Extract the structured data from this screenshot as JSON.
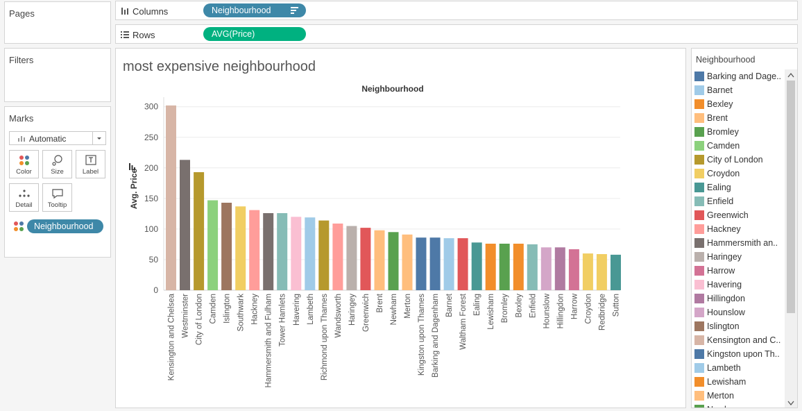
{
  "pages": {
    "title": "Pages"
  },
  "filters": {
    "title": "Filters"
  },
  "marks": {
    "title": "Marks",
    "mark_type": "Automatic",
    "cards": [
      {
        "label": "Color"
      },
      {
        "label": "Size"
      },
      {
        "label": "Label"
      },
      {
        "label": "Detail"
      },
      {
        "label": "Tooltip"
      }
    ],
    "color_pill": "Neighbourhood"
  },
  "shelves": {
    "columns_label": "Columns",
    "columns_pill": "Neighbourhood",
    "rows_label": "Rows",
    "rows_pill": "AVG(Price)"
  },
  "worksheet": {
    "title": "most expensive neighbourhood"
  },
  "legend": {
    "title": "Neighbourhood",
    "items": [
      {
        "label": "Barking and Dage..",
        "color": "#4e79a7"
      },
      {
        "label": "Barnet",
        "color": "#a0cbe8"
      },
      {
        "label": "Bexley",
        "color": "#f28e2b"
      },
      {
        "label": "Brent",
        "color": "#ffbe7d"
      },
      {
        "label": "Bromley",
        "color": "#59a14f"
      },
      {
        "label": "Camden",
        "color": "#8cd17d"
      },
      {
        "label": "City of London",
        "color": "#b6992d"
      },
      {
        "label": "Croydon",
        "color": "#f1ce63"
      },
      {
        "label": "Ealing",
        "color": "#499894"
      },
      {
        "label": "Enfield",
        "color": "#86bcb6"
      },
      {
        "label": "Greenwich",
        "color": "#e15759"
      },
      {
        "label": "Hackney",
        "color": "#ff9d9a"
      },
      {
        "label": "Hammersmith an..",
        "color": "#79706e"
      },
      {
        "label": "Haringey",
        "color": "#bab0ac"
      },
      {
        "label": "Harrow",
        "color": "#d37295"
      },
      {
        "label": "Havering",
        "color": "#fabfd2"
      },
      {
        "label": "Hillingdon",
        "color": "#b07aa1"
      },
      {
        "label": "Hounslow",
        "color": "#d4a6c8"
      },
      {
        "label": "Islington",
        "color": "#9d7660"
      },
      {
        "label": "Kensington and C..",
        "color": "#d7b5a6"
      },
      {
        "label": "Kingston upon Th..",
        "color": "#4e79a7"
      },
      {
        "label": "Lambeth",
        "color": "#a0cbe8"
      },
      {
        "label": "Lewisham",
        "color": "#f28e2b"
      },
      {
        "label": "Merton",
        "color": "#ffbe7d"
      },
      {
        "label": "Newham",
        "color": "#59a14f"
      }
    ]
  },
  "colors": {
    "pill_blue": "#3e88a8",
    "pill_green": "#00b180"
  },
  "chart_data": {
    "type": "bar",
    "title": "Neighbourhood",
    "ylabel": "Avg. Price",
    "ylim": [
      0,
      310
    ],
    "yticks": [
      0,
      50,
      100,
      150,
      200,
      250,
      300
    ],
    "categories": [
      "Kensington and Chelsea",
      "Westminster",
      "City of London",
      "Camden",
      "Islington",
      "Southwark",
      "Hackney",
      "Hammersmith and Fulham",
      "Tower Hamlets",
      "Havering",
      "Lambeth",
      "Richmond upon Thames",
      "Wandsworth",
      "Haringey",
      "Greenwich",
      "Brent",
      "Newham",
      "Merton",
      "Kingston upon Thames",
      "Barking and Dagenham",
      "Barnet",
      "Waltham Forest",
      "Ealing",
      "Lewisham",
      "Bromley",
      "Bexley",
      "Enfield",
      "Hounslow",
      "Hillingdon",
      "Harrow",
      "Croydon",
      "Redbridge",
      "Sutton"
    ],
    "values": [
      302,
      213,
      193,
      147,
      143,
      137,
      131,
      126,
      126,
      120,
      119,
      114,
      109,
      105,
      102,
      98,
      95,
      91,
      86,
      86,
      85,
      85,
      78,
      76,
      76,
      76,
      75,
      70,
      70,
      67,
      60,
      59,
      58
    ],
    "colors": [
      "#d7b5a6",
      "#79706e",
      "#b6992d",
      "#8cd17d",
      "#9d7660",
      "#f1ce63",
      "#ff9d9a",
      "#79706e",
      "#86bcb6",
      "#fabfd2",
      "#a0cbe8",
      "#b6992d",
      "#ff9d9a",
      "#bab0ac",
      "#e15759",
      "#ffbe7d",
      "#59a14f",
      "#ffbe7d",
      "#4e79a7",
      "#4e79a7",
      "#a0cbe8",
      "#e15759",
      "#499894",
      "#f28e2b",
      "#59a14f",
      "#f28e2b",
      "#86bcb6",
      "#d4a6c8",
      "#b07aa1",
      "#d37295",
      "#f1ce63",
      "#f1ce63",
      "#499894"
    ],
    "grid": true,
    "legend_position": "right"
  }
}
